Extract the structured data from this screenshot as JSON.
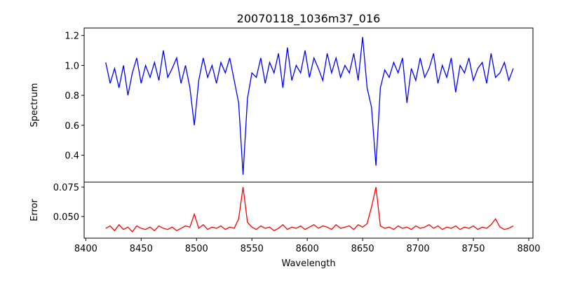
{
  "chart_data": [
    {
      "type": "line",
      "title": "20070118_1036m37_016",
      "xlabel": "",
      "ylabel": "Spectrum",
      "xlim": [
        8398.5,
        8803.8
      ],
      "ylim": [
        0.22,
        1.25
      ],
      "yticks": [
        0.4,
        0.6,
        0.8,
        1.0,
        1.2
      ],
      "ytick_labels": [
        "0.4",
        "0.6",
        "0.8",
        "1.0",
        "1.2"
      ],
      "color": "#0000ff",
      "x_start": 8418,
      "x_step": 4,
      "values": [
        1.02,
        0.88,
        0.98,
        0.85,
        1.0,
        0.8,
        0.95,
        1.05,
        0.88,
        1.0,
        0.92,
        1.02,
        0.9,
        1.1,
        0.92,
        0.98,
        1.05,
        0.88,
        1.0,
        0.85,
        0.6,
        0.9,
        1.05,
        0.92,
        1.0,
        0.88,
        1.02,
        0.95,
        1.05,
        0.9,
        0.75,
        0.27,
        0.78,
        0.95,
        0.92,
        1.05,
        0.88,
        1.02,
        0.95,
        1.08,
        0.85,
        1.12,
        0.9,
        1.0,
        0.95,
        1.1,
        0.92,
        1.05,
        0.98,
        0.9,
        1.08,
        0.95,
        1.05,
        0.92,
        1.0,
        0.95,
        1.08,
        0.9,
        1.19,
        0.85,
        0.72,
        0.33,
        0.85,
        0.97,
        0.92,
        1.02,
        0.95,
        1.05,
        0.75,
        0.98,
        0.9,
        1.05,
        0.92,
        0.98,
        1.08,
        0.88,
        1.0,
        0.92,
        1.05,
        0.82,
        1.0,
        0.95,
        1.05,
        0.9,
        0.98,
        1.02,
        0.88,
        1.08,
        0.92,
        0.95,
        1.02,
        0.9,
        0.98
      ]
    },
    {
      "type": "line",
      "xlabel": "Wavelength",
      "ylabel": "Error",
      "xlim": [
        8398.5,
        8803.8
      ],
      "ylim": [
        0.0316,
        0.0792
      ],
      "xticks": [
        8400,
        8450,
        8500,
        8550,
        8600,
        8650,
        8700,
        8750,
        8800
      ],
      "xtick_labels": [
        "8400",
        "8450",
        "8500",
        "8550",
        "8600",
        "8650",
        "8700",
        "8750",
        "8800"
      ],
      "yticks": [
        0.05,
        0.075
      ],
      "ytick_labels": [
        "0.050",
        "0.075"
      ],
      "color": "#ff0000",
      "x_start": 8418,
      "x_step": 4,
      "values": [
        0.04,
        0.042,
        0.038,
        0.043,
        0.039,
        0.041,
        0.037,
        0.042,
        0.04,
        0.039,
        0.041,
        0.038,
        0.042,
        0.04,
        0.039,
        0.041,
        0.038,
        0.04,
        0.042,
        0.041,
        0.052,
        0.04,
        0.043,
        0.039,
        0.041,
        0.04,
        0.042,
        0.039,
        0.041,
        0.04,
        0.048,
        0.075,
        0.045,
        0.041,
        0.039,
        0.042,
        0.04,
        0.041,
        0.038,
        0.04,
        0.043,
        0.039,
        0.041,
        0.04,
        0.042,
        0.039,
        0.041,
        0.043,
        0.04,
        0.042,
        0.041,
        0.039,
        0.043,
        0.04,
        0.041,
        0.042,
        0.039,
        0.043,
        0.041,
        0.044,
        0.058,
        0.075,
        0.042,
        0.04,
        0.041,
        0.039,
        0.042,
        0.04,
        0.041,
        0.039,
        0.042,
        0.04,
        0.041,
        0.043,
        0.04,
        0.042,
        0.039,
        0.041,
        0.04,
        0.042,
        0.039,
        0.041,
        0.04,
        0.042,
        0.039,
        0.041,
        0.04,
        0.043,
        0.048,
        0.041,
        0.039,
        0.04,
        0.042
      ]
    }
  ]
}
